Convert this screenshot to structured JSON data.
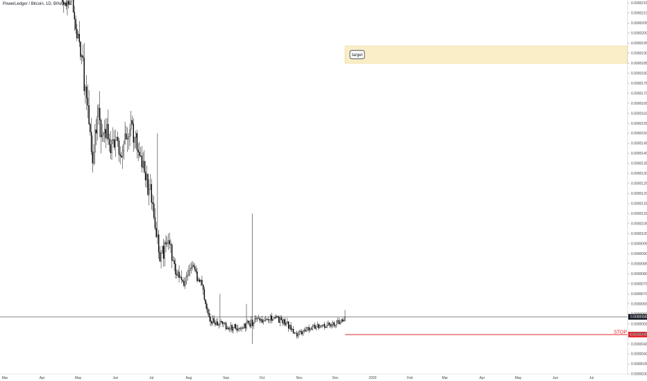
{
  "header": {
    "symbol_line": "PowerLedger / Bitcoin, 1D, BINANCE"
  },
  "chart_data": {
    "type": "candlestick",
    "y_axis": {
      "ticks": [
        2.15e-05,
        2.1e-05,
        2.05e-05,
        2e-05,
        1.95e-05,
        1.9e-05,
        1.85e-05,
        1.8e-05,
        1.75e-05,
        1.7e-05,
        1.65e-05,
        1.6e-05,
        1.55e-05,
        1.5e-05,
        1.45e-05,
        1.4e-05,
        1.35e-05,
        1.3e-05,
        1.25e-05,
        1.2e-05,
        1.15e-05,
        1.1e-05,
        1.05e-05,
        1e-05,
        9.5e-06,
        9e-06,
        8.5e-06,
        8e-06,
        7.5e-06,
        7e-06,
        6.5e-06,
        6e-06,
        5.5e-06,
        5e-06,
        4.5e-06,
        4e-06,
        3.5e-06,
        3e-06
      ],
      "tick_labels": [
        "0.00002150",
        "0.00002100",
        "0.00002050",
        "0.00002000",
        "0.00001950",
        "0.00001900",
        "0.00001850",
        "0.00001800",
        "0.00001750",
        "0.00001700",
        "0.00001650",
        "0.00001600",
        "0.00001550",
        "0.00001500",
        "0.00001450",
        "0.00001400",
        "0.00001350",
        "0.00001300",
        "0.00001250",
        "0.00001200",
        "0.00001150",
        "0.00001100",
        "0.00001050",
        "0.00001000",
        "0.00000950",
        "0.00000900",
        "0.00000850",
        "0.00000800",
        "0.00000750",
        "0.00000700",
        "0.00000650",
        "0.00000600",
        "0.00000550",
        "0.00000500",
        "0.00000450",
        "0.00000400",
        "0.00000350",
        "0.00000300"
      ],
      "range": [
        3e-06,
        2.165e-05
      ],
      "side": "right"
    },
    "x_axis": {
      "range": [
        "2019-02-25",
        "2020-07-31"
      ],
      "ticks": [
        {
          "date": "2019-03-01",
          "label": "Mar"
        },
        {
          "date": "2019-04-01",
          "label": "Apr"
        },
        {
          "date": "2019-05-01",
          "label": "May"
        },
        {
          "date": "2019-06-01",
          "label": "Jun"
        },
        {
          "date": "2019-07-01",
          "label": "Jul"
        },
        {
          "date": "2019-08-01",
          "label": "Aug"
        },
        {
          "date": "2019-09-01",
          "label": "Sep"
        },
        {
          "date": "2019-10-01",
          "label": "Oct"
        },
        {
          "date": "2019-11-01",
          "label": "Nov"
        },
        {
          "date": "2019-12-01",
          "label": "Dec"
        },
        {
          "date": "2020-01-01",
          "label": "2020"
        },
        {
          "date": "2020-02-01",
          "label": "Feb"
        },
        {
          "date": "2020-03-01",
          "label": "Mar"
        },
        {
          "date": "2020-04-01",
          "label": "Apr"
        },
        {
          "date": "2020-05-01",
          "label": "May"
        },
        {
          "date": "2020-06-01",
          "label": "Jun"
        },
        {
          "date": "2020-07-01",
          "label": "Jul"
        }
      ]
    },
    "waypoints": [
      {
        "date": "2019-04-07",
        "price": 2.28e-05,
        "vol": 4e-07
      },
      {
        "date": "2019-04-22",
        "price": 2.15e-05,
        "vol": 6e-07
      },
      {
        "date": "2019-04-27",
        "price": 2.13e-05,
        "vol": 7e-07
      },
      {
        "date": "2019-05-02",
        "price": 1.95e-05,
        "vol": 9e-07
      },
      {
        "date": "2019-05-10",
        "price": 1.58e-05,
        "vol": 1e-06
      },
      {
        "date": "2019-05-13",
        "price": 1.4e-05,
        "vol": 1.1e-06
      },
      {
        "date": "2019-05-18",
        "price": 1.55e-05,
        "vol": 1.1e-06
      },
      {
        "date": "2019-05-28",
        "price": 1.46e-05,
        "vol": 9e-07
      },
      {
        "date": "2019-06-06",
        "price": 1.42e-05,
        "vol": 8e-07
      },
      {
        "date": "2019-06-14",
        "price": 1.55e-05,
        "vol": 8e-07
      },
      {
        "date": "2019-06-20",
        "price": 1.4e-05,
        "vol": 7e-07
      },
      {
        "date": "2019-06-30",
        "price": 1.2e-05,
        "vol": 7e-07
      },
      {
        "date": "2019-07-08",
        "price": 8.8e-06,
        "vol": 6e-07
      },
      {
        "date": "2019-07-15",
        "price": 9.6e-06,
        "vol": 5.5e-07
      },
      {
        "date": "2019-07-22",
        "price": 8e-06,
        "vol": 4.5e-07
      },
      {
        "date": "2019-07-27",
        "price": 7.4e-06,
        "vol": 4e-07
      },
      {
        "date": "2019-08-05",
        "price": 8.3e-06,
        "vol": 4e-07
      },
      {
        "date": "2019-08-13",
        "price": 7.2e-06,
        "vol": 3.5e-07
      },
      {
        "date": "2019-08-18",
        "price": 5.7e-06,
        "vol": 3e-07
      },
      {
        "date": "2019-08-28",
        "price": 5.45e-06,
        "vol": 2.5e-07
      },
      {
        "date": "2019-09-10",
        "price": 5.3e-06,
        "vol": 2.5e-07
      },
      {
        "date": "2019-09-25",
        "price": 5.6e-06,
        "vol": 2.5e-07
      },
      {
        "date": "2019-10-08",
        "price": 5.8e-06,
        "vol": 2.5e-07
      },
      {
        "date": "2019-10-20",
        "price": 5.6e-06,
        "vol": 2.5e-07
      },
      {
        "date": "2019-10-30",
        "price": 5e-06,
        "vol": 2e-07
      },
      {
        "date": "2019-11-10",
        "price": 5.35e-06,
        "vol": 2e-07
      },
      {
        "date": "2019-11-25",
        "price": 5.45e-06,
        "vol": 2e-07
      },
      {
        "date": "2019-12-05",
        "price": 5.6e-06,
        "vol": 2e-07
      },
      {
        "date": "2019-12-09",
        "price": 5.8e-06,
        "vol": 2e-07
      }
    ],
    "spikes": [
      {
        "date": "2019-07-06",
        "high": 1.5e-05
      },
      {
        "date": "2019-09-23",
        "high": 1.1e-05,
        "low": 4.5e-06
      },
      {
        "date": "2019-08-27",
        "high": 7e-06
      },
      {
        "date": "2019-09-18",
        "high": 6.5e-06
      },
      {
        "date": "2019-12-09",
        "high": 6.2e-06
      }
    ],
    "current_price": {
      "value": 5.85e-06,
      "label": "0.00000585",
      "color": "#131722"
    },
    "stop_line": {
      "value": 4.97e-06,
      "label": "0.00000497",
      "text": "STOP",
      "color": "#e0242a",
      "from_date": "2019-12-09"
    },
    "target_zone": {
      "from": 1.85e-05,
      "to": 1.935e-05,
      "from_date": "2019-12-09",
      "label": "target",
      "fill": "#f9eec7",
      "border": "#ecd27e"
    },
    "candle_color": "#000000",
    "grid": false
  }
}
